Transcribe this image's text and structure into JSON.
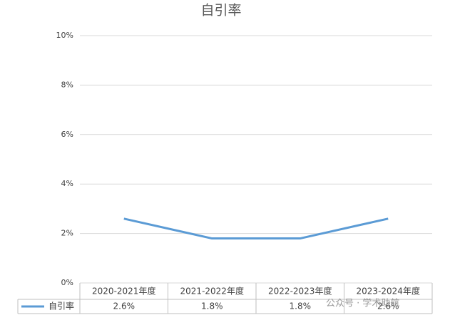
{
  "chart_data": {
    "type": "line",
    "title": "自引率",
    "categories": [
      "2020-2021年度",
      "2021-2022年度",
      "2022-2023年度",
      "2023-2024年度"
    ],
    "series": [
      {
        "name": "自引率",
        "color": "#5b9bd5",
        "values": [
          2.6,
          1.8,
          1.8,
          2.6
        ],
        "value_labels": [
          "2.6%",
          "1.8%",
          "1.8%",
          "2.6%"
        ]
      }
    ],
    "ylim": [
      0,
      10
    ],
    "yticks": [
      {
        "value": 0,
        "label": "0%"
      },
      {
        "value": 2,
        "label": "2%"
      },
      {
        "value": 4,
        "label": "4%"
      },
      {
        "value": 6,
        "label": "6%"
      },
      {
        "value": 8,
        "label": "8%"
      },
      {
        "value": 10,
        "label": "10%"
      }
    ],
    "grid": true,
    "data_table": true,
    "watermark": "公众号 · 学术助航"
  }
}
